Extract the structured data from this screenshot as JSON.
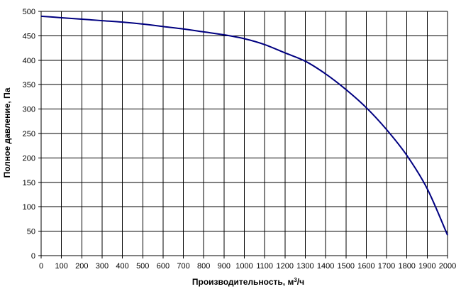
{
  "chart_data": {
    "type": "line",
    "title": "",
    "xlabel": "Производительность, м",
    "xlabel_sup": "3",
    "xlabel_suffix": "/ч",
    "ylabel": "Полное давление, Па",
    "xlim": [
      0,
      2000
    ],
    "ylim": [
      0,
      500
    ],
    "x_ticks": [
      0,
      100,
      200,
      300,
      400,
      500,
      600,
      700,
      800,
      900,
      1000,
      1100,
      1200,
      1300,
      1400,
      1500,
      1600,
      1700,
      1800,
      1900,
      2000
    ],
    "y_ticks": [
      0,
      50,
      100,
      150,
      200,
      250,
      300,
      350,
      400,
      450,
      500
    ],
    "grid": true,
    "legend": "none",
    "line_color": "#000080",
    "series": [
      {
        "x": [
          0,
          100,
          200,
          300,
          400,
          500,
          600,
          700,
          800,
          900,
          1000,
          1100,
          1200,
          1300,
          1400,
          1500,
          1600,
          1700,
          1800,
          1900,
          2000
        ],
        "y": [
          490,
          487,
          484,
          481,
          478,
          474,
          469,
          464,
          458,
          452,
          444,
          432,
          415,
          398,
          372,
          340,
          303,
          258,
          205,
          137,
          42
        ]
      }
    ]
  }
}
